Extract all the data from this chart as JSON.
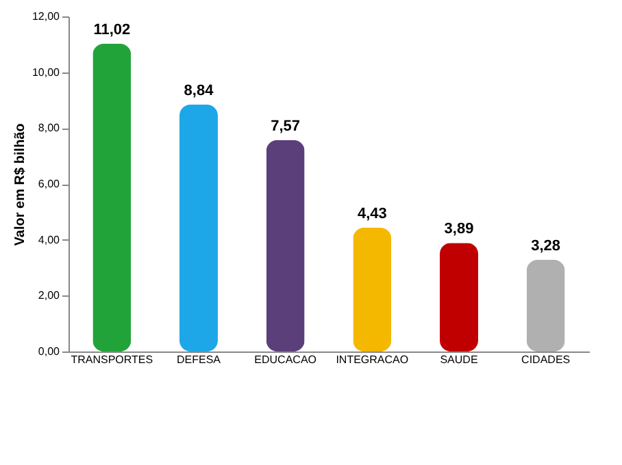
{
  "chart_data": {
    "type": "bar",
    "ylabel": "Valor em R$ bilhão",
    "categories": [
      "TRANSPORTES",
      "DEFESA",
      "EDUCACAO",
      "INTEGRACAO",
      "SAUDE",
      "CIDADES"
    ],
    "values": [
      11.02,
      8.84,
      7.57,
      4.43,
      3.89,
      3.28
    ],
    "colors": [
      "#22a33a",
      "#1ea7e8",
      "#5b3f7a",
      "#f5b800",
      "#c00000",
      "#b0b0b0"
    ],
    "value_labels": [
      "11,02",
      "8,84",
      "7,57",
      "4,43",
      "3,89",
      "3,28"
    ],
    "ylim": [
      0,
      12
    ],
    "yticks": [
      {
        "value": 0,
        "label": "0,00"
      },
      {
        "value": 2,
        "label": "2,00"
      },
      {
        "value": 4,
        "label": "4,00"
      },
      {
        "value": 6,
        "label": "6,00"
      },
      {
        "value": 8,
        "label": "8,00"
      },
      {
        "value": 10,
        "label": "10,00"
      },
      {
        "value": 12,
        "label": "12,00"
      }
    ],
    "grid": false,
    "legend": false
  }
}
